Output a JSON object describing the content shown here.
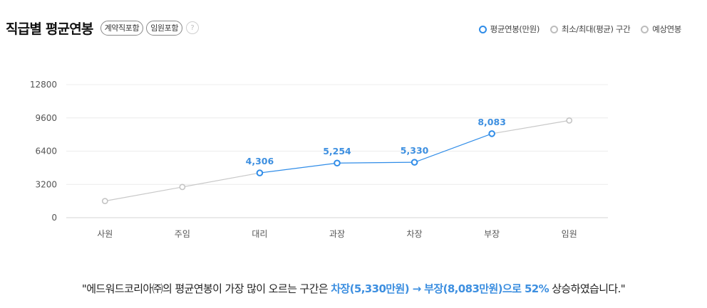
{
  "header": {
    "title": "직급별 평균연봉",
    "tags": [
      "계약직포함",
      "임원포함"
    ],
    "help_label": "?"
  },
  "legend": {
    "items": [
      {
        "label": "평균연봉(만원)",
        "color": "#2f8ce8"
      },
      {
        "label": "최소/최대(평균) 구간",
        "color": "#bdbdbd"
      },
      {
        "label": "예상연봉",
        "color": "#bdbdbd"
      }
    ]
  },
  "chart_data": {
    "type": "line",
    "categories": [
      "사원",
      "주임",
      "대리",
      "과장",
      "차장",
      "부장",
      "임원"
    ],
    "ylim": [
      0,
      12800
    ],
    "yticks": [
      0,
      3200,
      6400,
      9600,
      12800
    ],
    "grid": true,
    "legend_position": "top-right",
    "series": [
      {
        "name": "평균연봉(만원)",
        "color": "#2f8ce8",
        "values": [
          null,
          null,
          4306,
          5254,
          5330,
          8083,
          null
        ],
        "labels": [
          null,
          null,
          "4,306",
          "5,254",
          "5,330",
          "8,083",
          null
        ]
      },
      {
        "name": "예상연봉",
        "color": "#c8c8c8",
        "values": [
          1600,
          2950,
          4306,
          null,
          null,
          8083,
          9350
        ]
      }
    ]
  },
  "summary": {
    "prefix": "\"에드워드코리아㈜의 평균연봉이 가장 많이 오르는 구간은 ",
    "highlight": "차장(5,330만원) → 부장(8,083만원)으로 52%",
    "suffix": " 상승하였습니다.\""
  }
}
